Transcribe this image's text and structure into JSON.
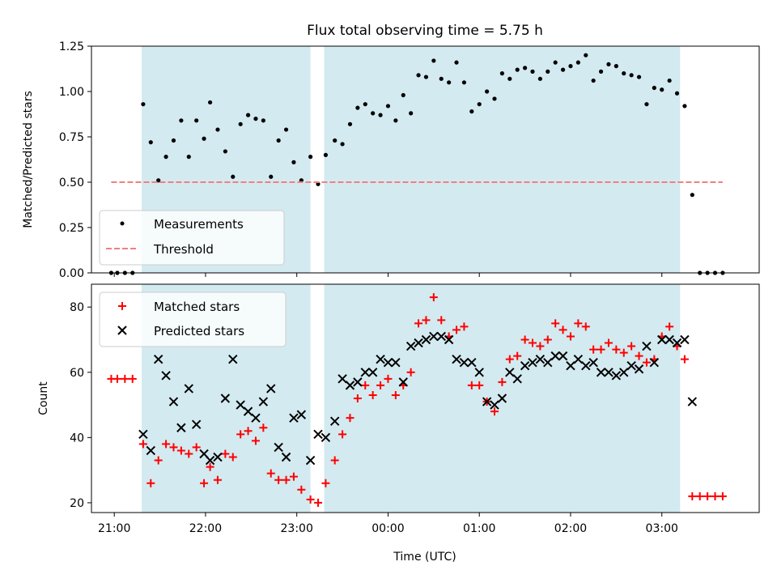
{
  "chart_data": [
    {
      "type": "scatter",
      "title": "Flux total observing time = 5.75 h",
      "xlabel": "",
      "ylabel": "Matched/Predicted stars",
      "xlim": [
        "20:45",
        "04:04"
      ],
      "ylim": [
        0,
        1.25
      ],
      "yticks": [
        "0.00",
        "0.25",
        "0.50",
        "0.75",
        "1.00",
        "1.25"
      ],
      "grid": false,
      "legend_placement": "lower-left",
      "highlight_spans": [
        [
          "21:18",
          "23:09"
        ],
        [
          "23:18",
          "03:12"
        ]
      ],
      "highlight_color": "#d3eaf0",
      "series": [
        {
          "name": "Measurements",
          "color": "#000000",
          "marker": "dot",
          "points": [
            [
              "20:58",
              0.0
            ],
            [
              "21:02",
              0.0
            ],
            [
              "21:07",
              0.0
            ],
            [
              "21:12",
              0.0
            ],
            [
              "21:19",
              0.93
            ],
            [
              "21:24",
              0.72
            ],
            [
              "21:29",
              0.51
            ],
            [
              "21:34",
              0.64
            ],
            [
              "21:39",
              0.73
            ],
            [
              "21:44",
              0.84
            ],
            [
              "21:49",
              0.64
            ],
            [
              "21:54",
              0.84
            ],
            [
              "21:59",
              0.74
            ],
            [
              "22:03",
              0.94
            ],
            [
              "22:08",
              0.79
            ],
            [
              "22:13",
              0.67
            ],
            [
              "22:18",
              0.53
            ],
            [
              "22:23",
              0.82
            ],
            [
              "22:28",
              0.87
            ],
            [
              "22:33",
              0.85
            ],
            [
              "22:38",
              0.84
            ],
            [
              "22:43",
              0.53
            ],
            [
              "22:48",
              0.73
            ],
            [
              "22:53",
              0.79
            ],
            [
              "22:58",
              0.61
            ],
            [
              "23:03",
              0.51
            ],
            [
              "23:09",
              0.64
            ],
            [
              "23:14",
              0.49
            ],
            [
              "23:19",
              0.65
            ],
            [
              "23:25",
              0.73
            ],
            [
              "23:30",
              0.71
            ],
            [
              "23:35",
              0.82
            ],
            [
              "23:40",
              0.91
            ],
            [
              "23:45",
              0.93
            ],
            [
              "23:50",
              0.88
            ],
            [
              "23:55",
              0.87
            ],
            [
              "00:00",
              0.92
            ],
            [
              "00:05",
              0.84
            ],
            [
              "00:10",
              0.98
            ],
            [
              "00:15",
              0.88
            ],
            [
              "00:20",
              1.09
            ],
            [
              "00:25",
              1.08
            ],
            [
              "00:30",
              1.17
            ],
            [
              "00:35",
              1.07
            ],
            [
              "00:40",
              1.05
            ],
            [
              "00:45",
              1.16
            ],
            [
              "00:50",
              1.05
            ],
            [
              "00:55",
              0.89
            ],
            [
              "01:00",
              0.93
            ],
            [
              "01:05",
              1.0
            ],
            [
              "01:10",
              0.96
            ],
            [
              "01:15",
              1.1
            ],
            [
              "01:20",
              1.07
            ],
            [
              "01:25",
              1.12
            ],
            [
              "01:30",
              1.13
            ],
            [
              "01:35",
              1.11
            ],
            [
              "01:40",
              1.07
            ],
            [
              "01:45",
              1.11
            ],
            [
              "01:50",
              1.16
            ],
            [
              "01:55",
              1.12
            ],
            [
              "02:00",
              1.14
            ],
            [
              "02:05",
              1.16
            ],
            [
              "02:10",
              1.2
            ],
            [
              "02:15",
              1.06
            ],
            [
              "02:20",
              1.11
            ],
            [
              "02:25",
              1.15
            ],
            [
              "02:30",
              1.14
            ],
            [
              "02:35",
              1.1
            ],
            [
              "02:40",
              1.09
            ],
            [
              "02:45",
              1.08
            ],
            [
              "02:50",
              0.93
            ],
            [
              "02:55",
              1.02
            ],
            [
              "03:00",
              1.01
            ],
            [
              "03:05",
              1.06
            ],
            [
              "03:10",
              0.99
            ],
            [
              "03:15",
              0.92
            ],
            [
              "03:20",
              0.43
            ],
            [
              "03:25",
              0.0
            ],
            [
              "03:30",
              0.0
            ],
            [
              "03:35",
              0.0
            ],
            [
              "03:40",
              0.0
            ]
          ]
        },
        {
          "name": "Threshold",
          "color": "#f08080",
          "marker": "dashed-line",
          "points": [
            [
              "20:58",
              0.5
            ],
            [
              "03:40",
              0.5
            ]
          ]
        }
      ]
    },
    {
      "type": "scatter",
      "title": "",
      "xlabel": "Time (UTC)",
      "ylabel": "Count",
      "xlim": [
        "20:45",
        "04:04"
      ],
      "ylim": [
        17,
        87
      ],
      "yticks": [
        "20",
        "40",
        "60",
        "80"
      ],
      "xticks": [
        "21:00",
        "22:00",
        "23:00",
        "00:00",
        "01:00",
        "02:00",
        "03:00"
      ],
      "grid": false,
      "legend_placement": "upper-left",
      "highlight_spans": [
        [
          "21:18",
          "23:09"
        ],
        [
          "23:18",
          "03:12"
        ]
      ],
      "highlight_color": "#d3eaf0",
      "series": [
        {
          "name": "Matched stars",
          "color": "#ff0000",
          "marker": "plus",
          "points": [
            [
              "20:58",
              58
            ],
            [
              "21:02",
              58
            ],
            [
              "21:07",
              58
            ],
            [
              "21:12",
              58
            ],
            [
              "21:19",
              38
            ],
            [
              "21:24",
              26
            ],
            [
              "21:29",
              33
            ],
            [
              "21:34",
              38
            ],
            [
              "21:39",
              37
            ],
            [
              "21:44",
              36
            ],
            [
              "21:49",
              35
            ],
            [
              "21:54",
              37
            ],
            [
              "21:59",
              26
            ],
            [
              "22:03",
              31
            ],
            [
              "22:08",
              27
            ],
            [
              "22:13",
              35
            ],
            [
              "22:18",
              34
            ],
            [
              "22:23",
              41
            ],
            [
              "22:28",
              42
            ],
            [
              "22:33",
              39
            ],
            [
              "22:38",
              43
            ],
            [
              "22:43",
              29
            ],
            [
              "22:48",
              27
            ],
            [
              "22:53",
              27
            ],
            [
              "22:58",
              28
            ],
            [
              "23:03",
              24
            ],
            [
              "23:09",
              21
            ],
            [
              "23:14",
              20
            ],
            [
              "23:19",
              26
            ],
            [
              "23:25",
              33
            ],
            [
              "23:30",
              41
            ],
            [
              "23:35",
              46
            ],
            [
              "23:40",
              52
            ],
            [
              "23:45",
              56
            ],
            [
              "23:50",
              53
            ],
            [
              "23:55",
              56
            ],
            [
              "00:00",
              58
            ],
            [
              "00:05",
              53
            ],
            [
              "00:10",
              56
            ],
            [
              "00:15",
              60
            ],
            [
              "00:20",
              75
            ],
            [
              "00:25",
              76
            ],
            [
              "00:30",
              83
            ],
            [
              "00:35",
              76
            ],
            [
              "00:40",
              71
            ],
            [
              "00:45",
              73
            ],
            [
              "00:50",
              74
            ],
            [
              "00:55",
              56
            ],
            [
              "01:00",
              56
            ],
            [
              "01:05",
              51
            ],
            [
              "01:10",
              48
            ],
            [
              "01:15",
              57
            ],
            [
              "01:20",
              64
            ],
            [
              "01:25",
              65
            ],
            [
              "01:30",
              70
            ],
            [
              "01:35",
              69
            ],
            [
              "01:40",
              68
            ],
            [
              "01:45",
              70
            ],
            [
              "01:50",
              75
            ],
            [
              "01:55",
              73
            ],
            [
              "02:00",
              71
            ],
            [
              "02:05",
              75
            ],
            [
              "02:10",
              74
            ],
            [
              "02:15",
              67
            ],
            [
              "02:20",
              67
            ],
            [
              "02:25",
              69
            ],
            [
              "02:30",
              67
            ],
            [
              "02:35",
              66
            ],
            [
              "02:40",
              68
            ],
            [
              "02:45",
              65
            ],
            [
              "02:50",
              63
            ],
            [
              "02:55",
              64
            ],
            [
              "03:00",
              71
            ],
            [
              "03:05",
              74
            ],
            [
              "03:10",
              68
            ],
            [
              "03:15",
              64
            ],
            [
              "03:20",
              22
            ],
            [
              "03:25",
              22
            ],
            [
              "03:30",
              22
            ],
            [
              "03:35",
              22
            ],
            [
              "03:40",
              22
            ]
          ]
        },
        {
          "name": "Predicted stars",
          "color": "#000000",
          "marker": "x",
          "points": [
            [
              "21:19",
              41
            ],
            [
              "21:24",
              36
            ],
            [
              "21:29",
              64
            ],
            [
              "21:34",
              59
            ],
            [
              "21:39",
              51
            ],
            [
              "21:44",
              43
            ],
            [
              "21:49",
              55
            ],
            [
              "21:54",
              44
            ],
            [
              "21:59",
              35
            ],
            [
              "22:03",
              33
            ],
            [
              "22:08",
              34
            ],
            [
              "22:13",
              52
            ],
            [
              "22:18",
              64
            ],
            [
              "22:23",
              50
            ],
            [
              "22:28",
              48
            ],
            [
              "22:33",
              46
            ],
            [
              "22:38",
              51
            ],
            [
              "22:43",
              55
            ],
            [
              "22:48",
              37
            ],
            [
              "22:53",
              34
            ],
            [
              "22:58",
              46
            ],
            [
              "23:03",
              47
            ],
            [
              "23:09",
              33
            ],
            [
              "23:14",
              41
            ],
            [
              "23:19",
              40
            ],
            [
              "23:25",
              45
            ],
            [
              "23:30",
              58
            ],
            [
              "23:35",
              56
            ],
            [
              "23:40",
              57
            ],
            [
              "23:45",
              60
            ],
            [
              "23:50",
              60
            ],
            [
              "23:55",
              64
            ],
            [
              "00:00",
              63
            ],
            [
              "00:05",
              63
            ],
            [
              "00:10",
              57
            ],
            [
              "00:15",
              68
            ],
            [
              "00:20",
              69
            ],
            [
              "00:25",
              70
            ],
            [
              "00:30",
              71
            ],
            [
              "00:35",
              71
            ],
            [
              "00:40",
              70
            ],
            [
              "00:45",
              64
            ],
            [
              "00:50",
              63
            ],
            [
              "00:55",
              63
            ],
            [
              "01:00",
              60
            ],
            [
              "01:05",
              51
            ],
            [
              "01:10",
              50
            ],
            [
              "01:15",
              52
            ],
            [
              "01:20",
              60
            ],
            [
              "01:25",
              58
            ],
            [
              "01:30",
              62
            ],
            [
              "01:35",
              63
            ],
            [
              "01:40",
              64
            ],
            [
              "01:45",
              63
            ],
            [
              "01:50",
              65
            ],
            [
              "01:55",
              65
            ],
            [
              "02:00",
              62
            ],
            [
              "02:05",
              64
            ],
            [
              "02:10",
              62
            ],
            [
              "02:15",
              63
            ],
            [
              "02:20",
              60
            ],
            [
              "02:25",
              60
            ],
            [
              "02:30",
              59
            ],
            [
              "02:35",
              60
            ],
            [
              "02:40",
              62
            ],
            [
              "02:45",
              61
            ],
            [
              "02:50",
              68
            ],
            [
              "02:55",
              63
            ],
            [
              "03:00",
              70
            ],
            [
              "03:05",
              70
            ],
            [
              "03:10",
              69
            ],
            [
              "03:15",
              70
            ],
            [
              "03:20",
              51
            ]
          ]
        }
      ]
    }
  ]
}
